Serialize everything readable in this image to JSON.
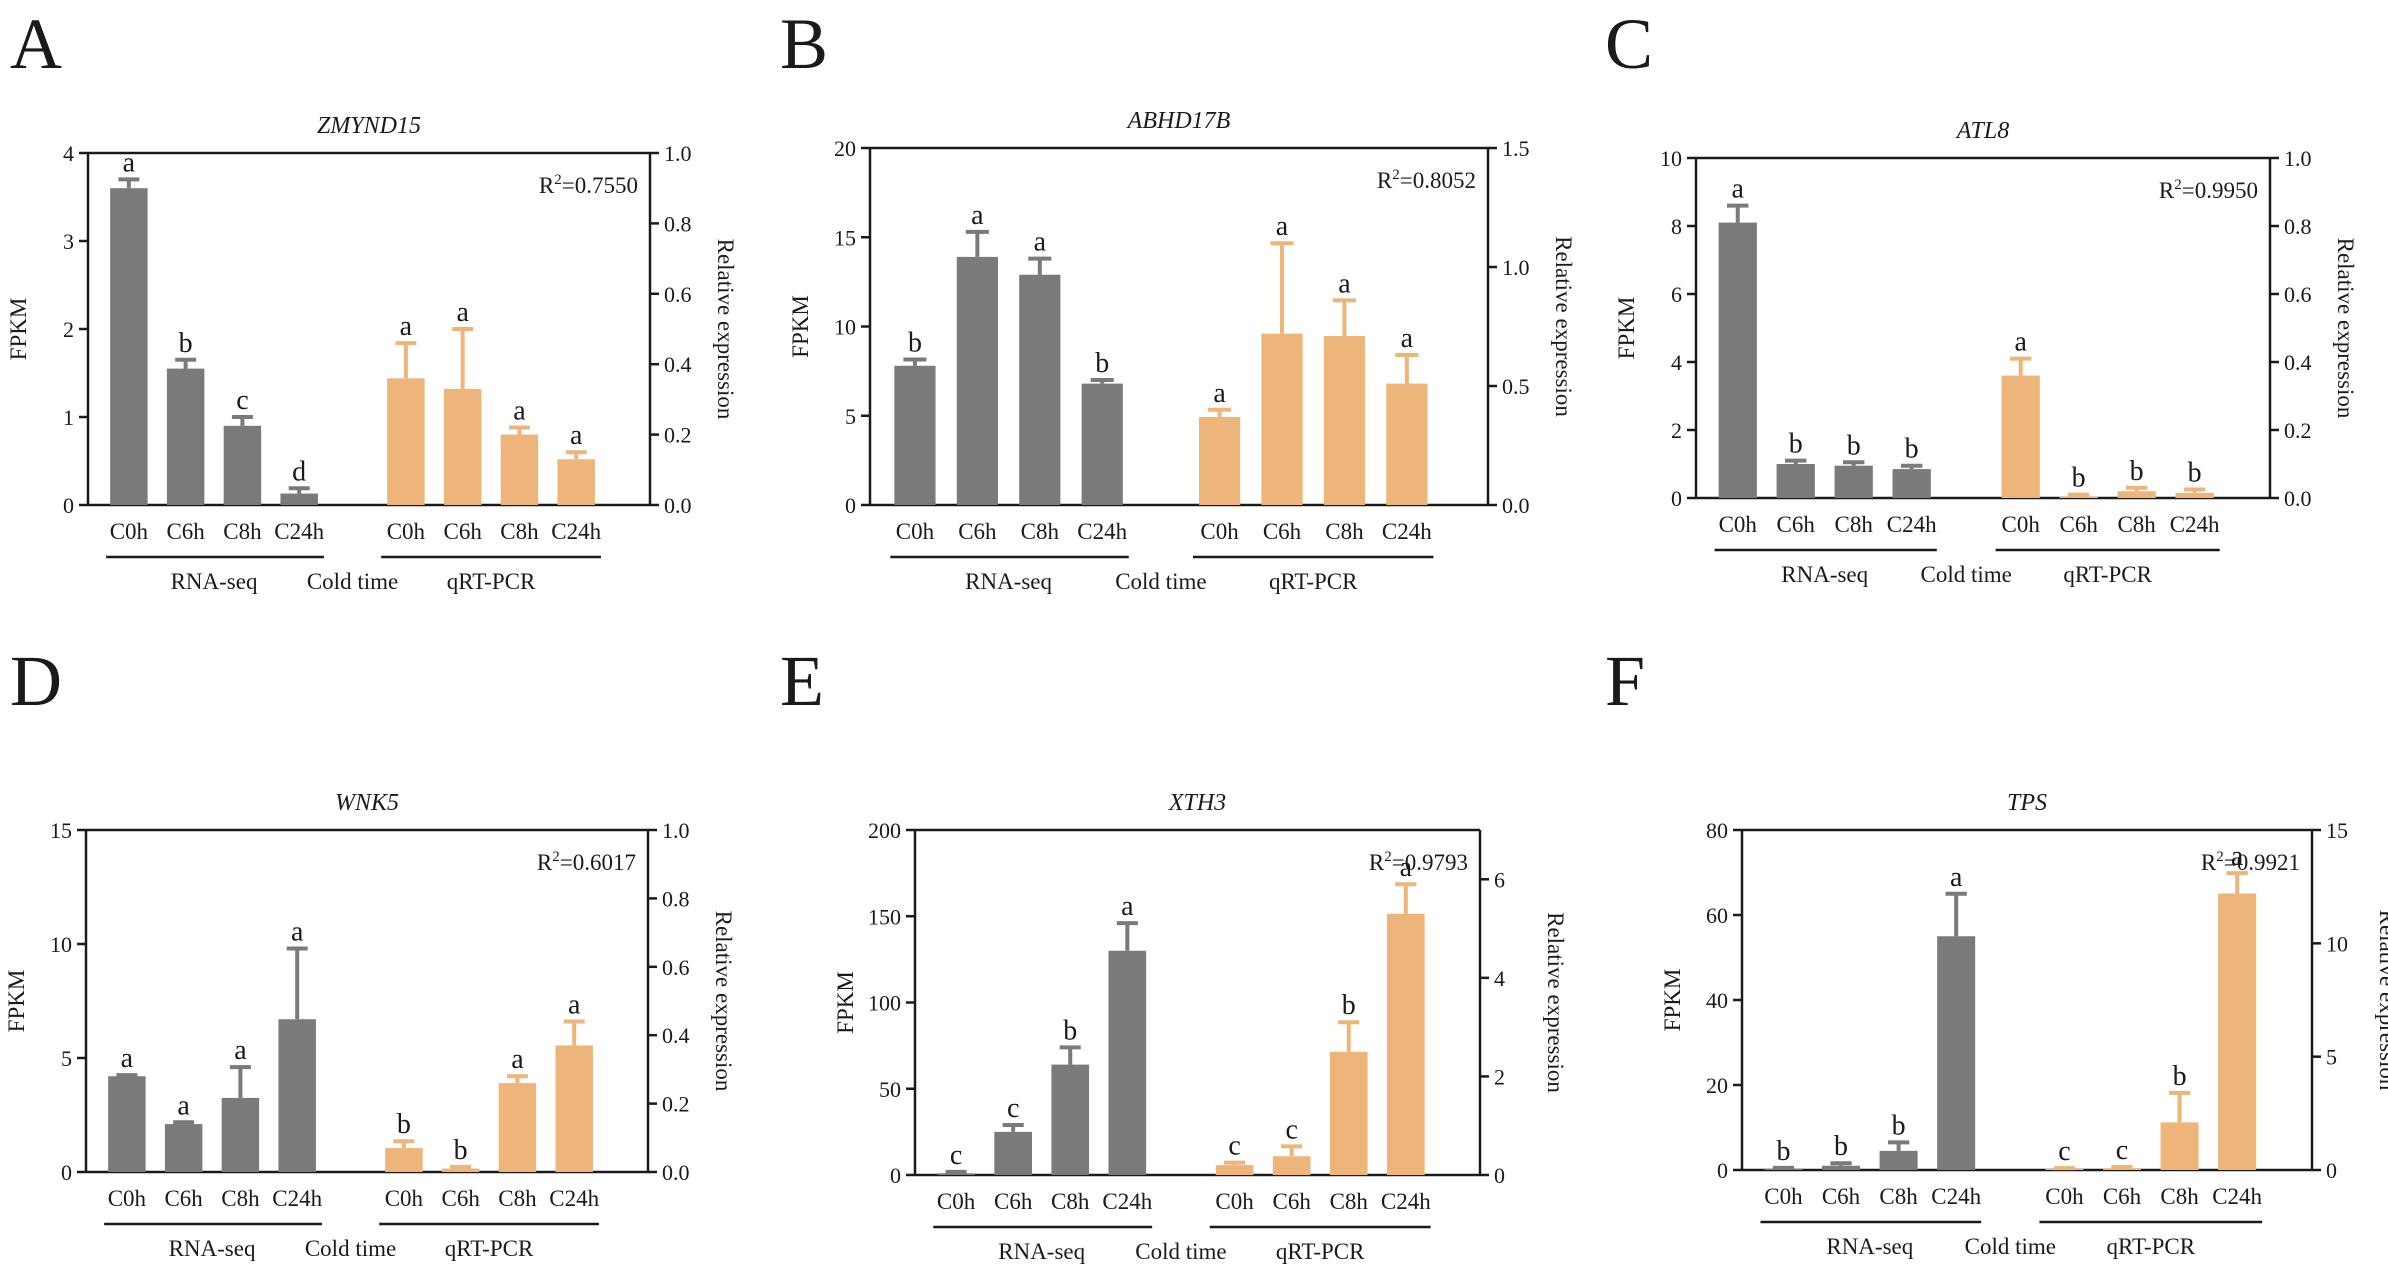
{
  "chart_data": [
    {
      "panel": "A",
      "type": "bar",
      "title": "ZMYND15",
      "categories": [
        "C0h",
        "C6h",
        "C8h",
        "C24h"
      ],
      "ylabel": "FPKM",
      "y2label": "Relative expression",
      "ylim": [
        0,
        4
      ],
      "yticks": [
        0,
        1,
        2,
        3,
        4
      ],
      "y2lim": [
        0,
        1.0
      ],
      "y2ticks": [
        "0.0",
        "0.2",
        "0.4",
        "0.6",
        "0.8",
        "1.0"
      ],
      "r2": "0.7550",
      "series": [
        {
          "name": "RNA-seq",
          "axis": "left",
          "color": "#7a7a7a",
          "values": [
            3.6,
            1.55,
            0.9,
            0.13
          ],
          "errors": [
            0.1,
            0.1,
            0.1,
            0.06
          ],
          "letters": [
            "a",
            "b",
            "c",
            "d"
          ]
        },
        {
          "name": "qRT-PCR",
          "axis": "right",
          "color": "#eeb57a",
          "values": [
            0.36,
            0.33,
            0.2,
            0.13
          ],
          "errors": [
            0.1,
            0.17,
            0.02,
            0.02
          ],
          "letters": [
            "a",
            "a",
            "a",
            "a"
          ]
        }
      ],
      "group_labels": [
        "RNA-seq",
        "Cold time",
        "qRT-PCR"
      ]
    },
    {
      "panel": "B",
      "type": "bar",
      "title": "ABHD17B",
      "categories": [
        "C0h",
        "C6h",
        "C8h",
        "C24h"
      ],
      "ylabel": "FPKM",
      "y2label": "Relative expression",
      "ylim": [
        0,
        20
      ],
      "yticks": [
        0,
        5,
        10,
        15,
        20
      ],
      "y2lim": [
        0,
        1.5
      ],
      "y2ticks": [
        "0.0",
        "0.5",
        "1.0",
        "1.5"
      ],
      "r2": "0.8052",
      "series": [
        {
          "name": "RNA-seq",
          "axis": "left",
          "color": "#7a7a7a",
          "values": [
            7.8,
            13.9,
            12.9,
            6.8
          ],
          "errors": [
            0.35,
            1.4,
            0.9,
            0.2
          ],
          "letters": [
            "b",
            "a",
            "a",
            "b"
          ]
        },
        {
          "name": "qRT-PCR",
          "axis": "right",
          "color": "#eeb57a",
          "values": [
            0.37,
            0.72,
            0.71,
            0.51
          ],
          "errors": [
            0.03,
            0.38,
            0.15,
            0.12
          ],
          "letters": [
            "a",
            "a",
            "a",
            "a"
          ]
        }
      ],
      "group_labels": [
        "RNA-seq",
        "Cold time",
        "qRT-PCR"
      ]
    },
    {
      "panel": "C",
      "type": "bar",
      "title": "ATL8",
      "categories": [
        "C0h",
        "C6h",
        "C8h",
        "C24h"
      ],
      "ylabel": "FPKM",
      "y2label": "Relative expression",
      "ylim": [
        0,
        10
      ],
      "yticks": [
        0,
        2,
        4,
        6,
        8,
        10
      ],
      "y2lim": [
        0,
        1.0
      ],
      "y2ticks": [
        "0.0",
        "0.2",
        "0.4",
        "0.6",
        "0.8",
        "1.0"
      ],
      "r2": "0.9950",
      "series": [
        {
          "name": "RNA-seq",
          "axis": "left",
          "color": "#7a7a7a",
          "values": [
            8.1,
            1.0,
            0.95,
            0.85
          ],
          "errors": [
            0.5,
            0.1,
            0.1,
            0.1
          ],
          "letters": [
            "a",
            "b",
            "b",
            "b"
          ]
        },
        {
          "name": "qRT-PCR",
          "axis": "right",
          "color": "#eeb57a",
          "values": [
            0.36,
            0.005,
            0.02,
            0.015
          ],
          "errors": [
            0.05,
            0.005,
            0.01,
            0.01
          ],
          "letters": [
            "a",
            "b",
            "b",
            "b"
          ]
        }
      ],
      "group_labels": [
        "RNA-seq",
        "Cold time",
        "qRT-PCR"
      ]
    },
    {
      "panel": "D",
      "type": "bar",
      "title": "WNK5",
      "categories": [
        "C0h",
        "C6h",
        "C8h",
        "C24h"
      ],
      "ylabel": "FPKM",
      "y2label": "Relative expression",
      "ylim": [
        0,
        15
      ],
      "yticks": [
        0,
        5,
        10,
        15
      ],
      "y2lim": [
        0,
        1.0
      ],
      "y2ticks": [
        "0.0",
        "0.2",
        "0.4",
        "0.6",
        "0.8",
        "1.0"
      ],
      "r2": "0.6017",
      "series": [
        {
          "name": "RNA-seq",
          "axis": "left",
          "color": "#7a7a7a",
          "values": [
            4.2,
            2.1,
            3.25,
            6.7
          ],
          "errors": [
            0.05,
            0.08,
            1.35,
            3.1
          ],
          "letters": [
            "a",
            "a",
            "a",
            "a"
          ]
        },
        {
          "name": "qRT-PCR",
          "axis": "right",
          "color": "#eeb57a",
          "values": [
            0.07,
            0.01,
            0.26,
            0.37
          ],
          "errors": [
            0.02,
            0.005,
            0.02,
            0.07
          ],
          "letters": [
            "b",
            "b",
            "a",
            "a"
          ]
        }
      ],
      "group_labels": [
        "RNA-seq",
        "Cold time",
        "qRT-PCR"
      ]
    },
    {
      "panel": "E",
      "type": "bar",
      "title": "XTH3",
      "categories": [
        "C0h",
        "C6h",
        "C8h",
        "C24h"
      ],
      "ylabel": "FPKM",
      "y2label": "Relative expression",
      "ylim": [
        0,
        200
      ],
      "yticks": [
        0,
        50,
        100,
        150,
        200
      ],
      "y2lim": [
        0,
        7
      ],
      "y2ticks": [
        "0",
        "2",
        "4",
        "6"
      ],
      "r2": "0.9793",
      "series": [
        {
          "name": "RNA-seq",
          "axis": "left",
          "color": "#7a7a7a",
          "values": [
            1,
            25,
            64,
            130
          ],
          "errors": [
            0.8,
            4,
            10,
            16
          ],
          "letters": [
            "c",
            "c",
            "b",
            "a"
          ]
        },
        {
          "name": "qRT-PCR",
          "axis": "right",
          "color": "#eeb57a",
          "values": [
            0.2,
            0.38,
            2.5,
            5.3
          ],
          "errors": [
            0.05,
            0.2,
            0.6,
            0.6
          ],
          "letters": [
            "c",
            "c",
            "b",
            "a"
          ]
        }
      ],
      "group_labels": [
        "RNA-seq",
        "Cold time",
        "qRT-PCR"
      ]
    },
    {
      "panel": "F",
      "type": "bar",
      "title": "TPS",
      "categories": [
        "C0h",
        "C6h",
        "C8h",
        "C24h"
      ],
      "ylabel": "FPKM",
      "y2label": "Relative expression",
      "ylim": [
        0,
        80
      ],
      "yticks": [
        0,
        20,
        40,
        60,
        80
      ],
      "y2lim": [
        0,
        15
      ],
      "y2ticks": [
        "0",
        "5",
        "10",
        "15"
      ],
      "r2": "0.9921",
      "series": [
        {
          "name": "RNA-seq",
          "axis": "left",
          "color": "#7a7a7a",
          "values": [
            0.3,
            1,
            4.5,
            55
          ],
          "errors": [
            0.2,
            0.6,
            2,
            10
          ],
          "letters": [
            "b",
            "b",
            "b",
            "a"
          ]
        },
        {
          "name": "qRT-PCR",
          "axis": "right",
          "color": "#eeb57a",
          "values": [
            0.05,
            0.08,
            2.1,
            12.2
          ],
          "errors": [
            0.03,
            0.05,
            1.3,
            0.9
          ],
          "letters": [
            "c",
            "c",
            "b",
            "a"
          ]
        }
      ],
      "group_labels": [
        "RNA-seq",
        "Cold time",
        "qRT-PCR"
      ]
    }
  ]
}
